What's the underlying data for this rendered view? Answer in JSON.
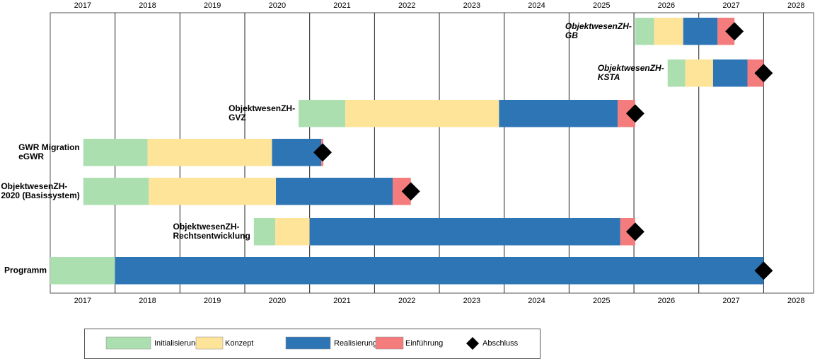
{
  "chart_data": {
    "type": "gantt",
    "categories": [
      [
        "ObjektwesenZH-",
        "GB"
      ],
      [
        "ObjektwesenZH-",
        "KSTA"
      ],
      [
        "ObjektwesenZH-",
        "GVZ"
      ],
      [
        "GWR Migration",
        "eGWR"
      ],
      [
        "ObjektwesenZH-",
        "2020 (Basissystem)"
      ],
      [
        "ObjektwesenZH-",
        "Rechtsentwicklung"
      ],
      [
        "Programm"
      ]
    ],
    "italic_categories": [
      true,
      true,
      false,
      false,
      false,
      false,
      false
    ],
    "series": [
      {
        "name": "Initialisierung",
        "color": "#acdfb0",
        "start": [
          2026.02,
          2026.52,
          2020.83,
          2017.51,
          2017.51,
          2020.14,
          2017.0
        ],
        "end": [
          2026.31,
          2026.79,
          2021.55,
          2018.5,
          2018.52,
          2020.47,
          2018.0
        ]
      },
      {
        "name": "Konzept",
        "color": "#fde499",
        "start": [
          2026.31,
          2026.79,
          2021.55,
          2018.5,
          2018.52,
          2020.47,
          null
        ],
        "end": [
          2026.76,
          2027.22,
          2023.92,
          2020.42,
          2020.48,
          2021.0,
          null
        ]
      },
      {
        "name": "Realisierung",
        "color": "#2e75b6",
        "start": [
          2026.76,
          2027.22,
          2023.92,
          2020.42,
          2020.48,
          2021.0,
          2018.0
        ],
        "end": [
          2027.29,
          2027.75,
          2025.75,
          2021.18,
          2022.28,
          2025.79,
          2028.0
        ]
      },
      {
        "name": "Einführung",
        "color": "#f47c7c",
        "start": [
          2027.29,
          2027.75,
          2025.75,
          2021.18,
          2022.28,
          2025.79,
          null
        ],
        "end": [
          2027.55,
          2028.0,
          2026.02,
          2021.21,
          2022.56,
          2026.02,
          null
        ]
      }
    ],
    "milestones": {
      "name": "Abschluss",
      "color": "#000000",
      "values": [
        2027.55,
        2028.0,
        2026.02,
        2021.2,
        2022.56,
        2026.02,
        2028.0
      ]
    },
    "xlim": [
      2017,
      2028.77
    ],
    "xticks": [
      {
        "value": 2017.5,
        "label": "2017"
      },
      {
        "value": 2018.5,
        "label": "2018"
      },
      {
        "value": 2019.5,
        "label": "2019"
      },
      {
        "value": 2020.5,
        "label": "2020"
      },
      {
        "value": 2021.5,
        "label": "2021"
      },
      {
        "value": 2022.5,
        "label": "2022"
      },
      {
        "value": 2023.5,
        "label": "2023"
      },
      {
        "value": 2024.5,
        "label": "2024"
      },
      {
        "value": 2025.5,
        "label": "2025"
      },
      {
        "value": 2026.5,
        "label": "2026"
      },
      {
        "value": 2027.5,
        "label": "2027"
      },
      {
        "value": 2028.5,
        "label": "2028"
      }
    ],
    "xgrid": [
      2018,
      2019,
      2020,
      2021,
      2022,
      2023,
      2024,
      2025,
      2026,
      2027,
      2028
    ]
  }
}
